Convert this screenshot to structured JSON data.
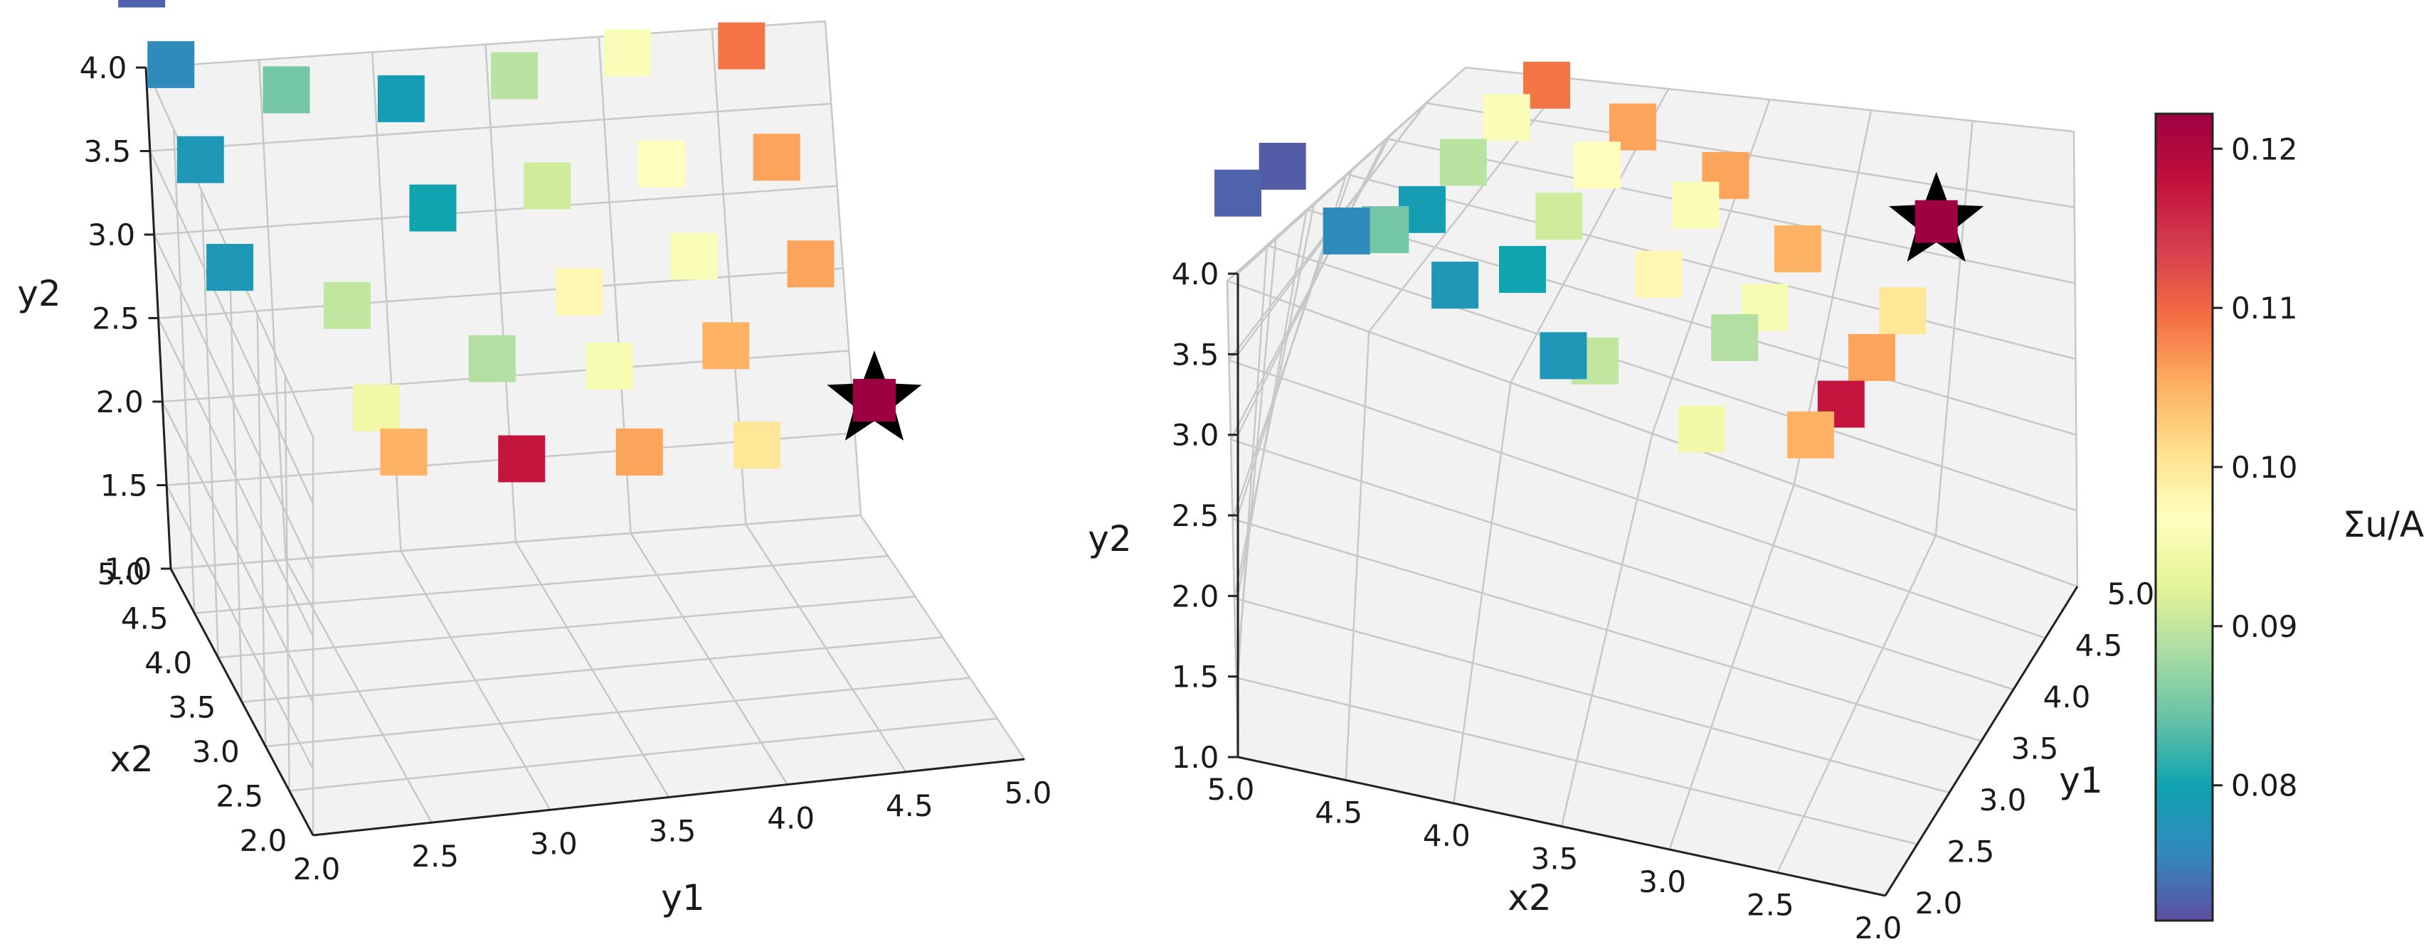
{
  "chart_data": {
    "type": "scatter3d",
    "colorbar": {
      "label": "Σu/A",
      "range": [
        0.0715,
        0.1222
      ],
      "ticks": [
        "0.08",
        "0.09",
        "0.10",
        "0.11",
        "0.12"
      ],
      "colormap": [
        "#5e4fa2",
        "#3288bd",
        "#0fa3b0",
        "#66c2a5",
        "#abdda4",
        "#e6f598",
        "#ffffbf",
        "#fee08b",
        "#fdae61",
        "#f46d43",
        "#d53e4f",
        "#c2103c",
        "#9e0142"
      ]
    },
    "best_marker": {
      "shape": "star",
      "y1": 4.5,
      "x2": 2.5,
      "y2": 3.6,
      "value": 0.1222
    },
    "panels": [
      {
        "name": "left",
        "x_label": "y1",
        "y_label": "x2",
        "z_label": "y2",
        "x_range": [
          2.0,
          5.0
        ],
        "y_range": [
          2.0,
          5.0
        ],
        "z_range": [
          1.0,
          4.0
        ],
        "x_ticks": [
          "2.0",
          "2.5",
          "3.0",
          "3.5",
          "4.0",
          "4.5",
          "5.0"
        ],
        "y_ticks": [
          "2.0",
          "2.5",
          "3.0",
          "3.5",
          "4.0",
          "4.5",
          "5.0"
        ],
        "z_ticks": [
          "1.0",
          "1.5",
          "2.0",
          "2.5",
          "3.0",
          "3.5",
          "4.0"
        ]
      },
      {
        "name": "right",
        "x_label": "x2",
        "y_label": "y1",
        "z_label": "y2",
        "x_range": [
          2.0,
          5.0
        ],
        "y_range": [
          2.0,
          5.0
        ],
        "z_range": [
          1.0,
          4.0
        ],
        "x_ticks": [
          "5.0",
          "4.5",
          "4.0",
          "3.5",
          "3.0",
          "2.5",
          "2.0"
        ],
        "y_ticks": [
          "2.0",
          "2.5",
          "3.0",
          "3.5",
          "4.0",
          "4.5",
          "5.0"
        ],
        "z_ticks": [
          "1.0",
          "1.5",
          "2.0",
          "2.5",
          "3.0",
          "3.5",
          "4.0"
        ]
      }
    ],
    "points": [
      {
        "y1": 2.5,
        "x2": 3.5,
        "y2": 3.6,
        "value": 0.09
      },
      {
        "y1": 2.5,
        "x2": 3.0,
        "y2": 3.3,
        "value": 0.0945
      },
      {
        "y1": 2.5,
        "x2": 2.5,
        "y2": 3.4,
        "value": 0.105
      },
      {
        "y1": 3.0,
        "x2": 2.5,
        "y2": 3.3,
        "value": 0.1175
      },
      {
        "y1": 3.0,
        "x2": 3.0,
        "y2": 3.6,
        "value": 0.089
      },
      {
        "y1": 3.0,
        "x2": 4.0,
        "y2": 3.8,
        "value": 0.08
      },
      {
        "y1": 3.0,
        "x2": 4.5,
        "y2": 4.1,
        "value": 0.079
      },
      {
        "y1": 3.5,
        "x2": 4.5,
        "y2": 4.2,
        "value": 0.0895
      },
      {
        "y1": 3.5,
        "x2": 4.0,
        "y2": 3.9,
        "value": 0.091
      },
      {
        "y1": 3.5,
        "x2": 3.5,
        "y2": 3.6,
        "value": 0.098
      },
      {
        "y1": 3.5,
        "x2": 3.0,
        "y2": 3.5,
        "value": 0.0955
      },
      {
        "y1": 3.5,
        "x2": 2.5,
        "y2": 3.3,
        "value": 0.106
      },
      {
        "y1": 4.0,
        "x2": 2.5,
        "y2": 3.3,
        "value": 0.1
      },
      {
        "y1": 4.0,
        "x2": 3.0,
        "y2": 3.6,
        "value": 0.105
      },
      {
        "y1": 4.0,
        "x2": 3.5,
        "y2": 3.8,
        "value": 0.096
      },
      {
        "y1": 4.0,
        "x2": 4.0,
        "y2": 4.0,
        "value": 0.097
      },
      {
        "y1": 4.0,
        "x2": 4.5,
        "y2": 4.3,
        "value": 0.096
      },
      {
        "y1": 4.5,
        "x2": 3.5,
        "y2": 3.7,
        "value": 0.106
      },
      {
        "y1": 4.5,
        "x2": 4.0,
        "y2": 4.0,
        "value": 0.106
      },
      {
        "y1": 4.5,
        "x2": 4.5,
        "y2": 4.3,
        "value": 0.109
      },
      {
        "y1": 2.0,
        "x2": 3.5,
        "y2": 3.9,
        "value": 0.078
      },
      {
        "y1": 2.0,
        "x2": 4.0,
        "y2": 4.2,
        "value": 0.078
      },
      {
        "y1": 2.0,
        "x2": 4.5,
        "y2": 4.4,
        "value": 0.076
      },
      {
        "y1": 2.0,
        "x2": 5.0,
        "y2": 4.5,
        "value": 0.073
      },
      {
        "y1": 2.5,
        "x2": 5.0,
        "y2": 4.5,
        "value": 0.0725
      },
      {
        "y1": 2.5,
        "x2": 4.5,
        "y2": 4.2,
        "value": 0.085
      }
    ]
  }
}
